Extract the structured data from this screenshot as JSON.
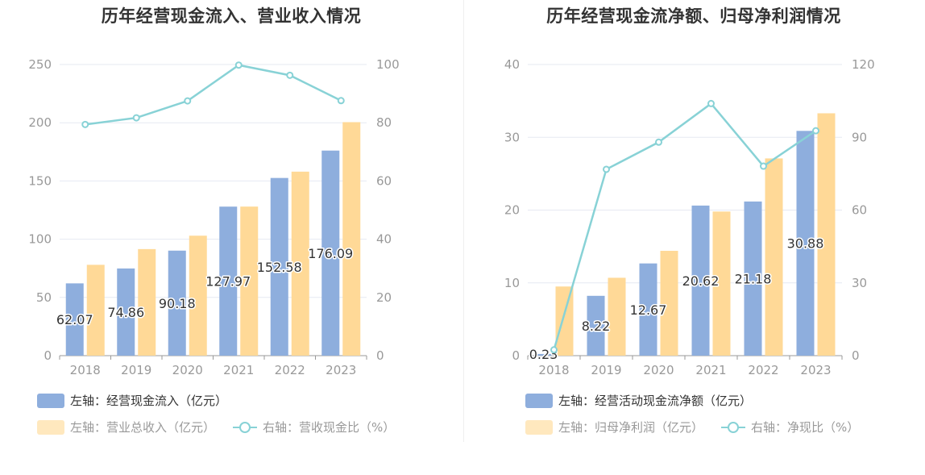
{
  "colors": {
    "bar_primary": "#8eaedd",
    "bar_secondary": "#ffd997",
    "line": "#88d2d6",
    "axis": "#999999",
    "grid": "#e6e9f2",
    "label": "#333333"
  },
  "chart_data": [
    {
      "type": "bar",
      "title": "历年经营现金流入、营业收入情况",
      "categories": [
        "2018",
        "2019",
        "2020",
        "2021",
        "2022",
        "2023"
      ],
      "series": [
        {
          "name": "左轴：经营现金流入（亿元）",
          "axis": "left",
          "kind": "bar",
          "color": "#8eaedd",
          "values": [
            62.07,
            74.86,
            90.18,
            127.97,
            152.58,
            176.09
          ],
          "labels": [
            "62.07",
            "74.86",
            "90.18",
            "127.97",
            "152.58",
            "176.09"
          ]
        },
        {
          "name": "左轴：营业总收入（亿元）",
          "axis": "left",
          "kind": "bar",
          "color": "#ffd997",
          "values": [
            78,
            91.5,
            103,
            128,
            158,
            200.5
          ]
        },
        {
          "name": "右轴：营收现金比（%）",
          "axis": "right",
          "kind": "line",
          "color": "#88d2d6",
          "values": [
            79.4,
            81.7,
            87.5,
            99.8,
            96.3,
            87.6
          ]
        }
      ],
      "y_left": {
        "min": 0,
        "max": 250,
        "ticks": [
          "0",
          "50",
          "100",
          "150",
          "200",
          "250"
        ]
      },
      "y_right": {
        "min": 0,
        "max": 100,
        "ticks": [
          "0",
          "20",
          "40",
          "60",
          "80",
          "100"
        ]
      },
      "grid": true,
      "legend_position": "bottom-left"
    },
    {
      "type": "bar",
      "title": "历年经营现金流净额、归母净利润情况",
      "categories": [
        "2018",
        "2019",
        "2020",
        "2021",
        "2022",
        "2023"
      ],
      "series": [
        {
          "name": "左轴：经营活动现金流净额（亿元）",
          "axis": "left",
          "kind": "bar",
          "color": "#8eaedd",
          "values": [
            0.23,
            8.22,
            12.67,
            20.62,
            21.18,
            30.88
          ],
          "labels": [
            "0.23",
            "8.22",
            "12.67",
            "20.62",
            "21.18",
            "30.88"
          ]
        },
        {
          "name": "左轴：归母净利润（亿元）",
          "axis": "left",
          "kind": "bar",
          "color": "#ffd997",
          "values": [
            9.5,
            10.7,
            14.4,
            19.8,
            27.1,
            33.3
          ]
        },
        {
          "name": "右轴：净现比（%）",
          "axis": "right",
          "kind": "line",
          "color": "#88d2d6",
          "values": [
            2.4,
            76.8,
            88.0,
            103.9,
            78.1,
            92.7
          ]
        }
      ],
      "y_left": {
        "min": 0,
        "max": 40,
        "ticks": [
          "0",
          "10",
          "20",
          "30",
          "40"
        ]
      },
      "y_right": {
        "min": 0,
        "max": 120,
        "ticks": [
          "0",
          "30",
          "60",
          "90",
          "120"
        ]
      },
      "grid": true,
      "legend_position": "bottom-left"
    }
  ]
}
